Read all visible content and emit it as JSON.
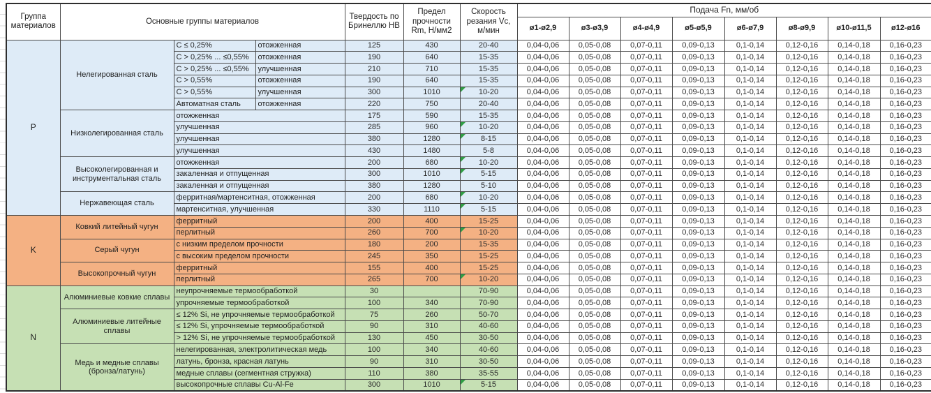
{
  "header": {
    "col_group": "Группа материалов",
    "col_materials": "Основные группы материалов",
    "col_hb": "Твердость по Бринеллю HB",
    "col_rm": "Предел прочности Rm, Н/мм2",
    "col_vc": "Скорость резания Vc, м/мин",
    "feed_title": "Подача Fn, мм/об",
    "feed_cols": [
      "ø1-ø2,9",
      "ø3-ø3,9",
      "ø4-ø4,9",
      "ø5-ø5,9",
      "ø6-ø7,9",
      "ø8-ø9,9",
      "ø10-ø11,5",
      "ø12-ø16"
    ]
  },
  "feed_values_all_rows": [
    "0,04-0,06",
    "0,05-0,08",
    "0,07-0,11",
    "0,09-0,13",
    "0,1-0,14",
    "0,12-0,16",
    "0,14-0,18",
    "0,16-0,23"
  ],
  "colors": {
    "group_p": "#DEEBF7",
    "group_k": "#F4B183",
    "group_n": "#C6E0B4",
    "comment_marker": "#2f9e44",
    "grid_line": "#4a4a4a"
  },
  "groups": [
    {
      "code": "P",
      "color": "#DEEBF7",
      "subgroups": [
        {
          "name": "Нелегированная сталь",
          "rows": [
            {
              "c1": "C ≤ 0,25%",
              "c2": "отожженная",
              "hb": "125",
              "rm": "430",
              "vc": "20-40",
              "marker": false
            },
            {
              "c1": "C > 0,25% ... ≤0,55%",
              "c2": "отожженная",
              "hb": "190",
              "rm": "640",
              "vc": "15-35",
              "marker": false
            },
            {
              "c1": "C > 0,25% ... ≤0,55%",
              "c2": "улучшенная",
              "hb": "210",
              "rm": "710",
              "vc": "15-35",
              "marker": false
            },
            {
              "c1": "C > 0,55%",
              "c2": "отожженная",
              "hb": "190",
              "rm": "640",
              "vc": "15-35",
              "marker": false
            },
            {
              "c1": "C > 0,55%",
              "c2": "улучшенная",
              "hb": "300",
              "rm": "1010",
              "vc": "10-20",
              "marker": true
            },
            {
              "c1": "Автоматная сталь",
              "c2": "отожженная",
              "hb": "220",
              "rm": "750",
              "vc": "20-40",
              "marker": false
            }
          ]
        },
        {
          "name": "Низколегированная сталь",
          "rows": [
            {
              "desc": "отожженная",
              "hb": "175",
              "rm": "590",
              "vc": "15-35",
              "marker": false
            },
            {
              "desc": "улучшенная",
              "hb": "285",
              "rm": "960",
              "vc": "10-20",
              "marker": true
            },
            {
              "desc": "улучшенная",
              "hb": "380",
              "rm": "1280",
              "vc": "8-15",
              "marker": true
            },
            {
              "desc": "улучшенная",
              "hb": "430",
              "rm": "1480",
              "vc": "5-8",
              "marker": false
            }
          ]
        },
        {
          "name": "Высоколегированная и инструментальная сталь",
          "rows": [
            {
              "desc": "отожженная",
              "hb": "200",
              "rm": "680",
              "vc": "10-20",
              "marker": true
            },
            {
              "desc": "закаленная и отпущенная",
              "hb": "300",
              "rm": "1010",
              "vc": "5-15",
              "marker": true
            },
            {
              "desc": "закаленная и отпущенная",
              "hb": "380",
              "rm": "1280",
              "vc": "5-10",
              "marker": false
            }
          ]
        },
        {
          "name": "Нержавеющая сталь",
          "rows": [
            {
              "desc": "ферритная/мартенситная, отожженная",
              "hb": "200",
              "rm": "680",
              "vc": "10-20",
              "marker": true
            },
            {
              "desc": "мартенситная, улучшенная",
              "hb": "330",
              "rm": "1110",
              "vc": "5-15",
              "marker": true
            }
          ]
        }
      ]
    },
    {
      "code": "K",
      "color": "#F4B183",
      "subgroups": [
        {
          "name": "Ковкий литейный чугун",
          "rows": [
            {
              "desc": "ферритный",
              "hb": "200",
              "rm": "400",
              "vc": "15-25",
              "marker": false
            },
            {
              "desc": "перлитный",
              "hb": "260",
              "rm": "700",
              "vc": "10-20",
              "marker": true
            }
          ]
        },
        {
          "name": "Серый чугун",
          "rows": [
            {
              "desc": "с низким пределом прочности",
              "hb": "180",
              "rm": "200",
              "vc": "15-35",
              "marker": false
            },
            {
              "desc": "с высоким пределом прочности",
              "hb": "245",
              "rm": "350",
              "vc": "15-25",
              "marker": false
            }
          ]
        },
        {
          "name": "Высокопрочный чугун",
          "rows": [
            {
              "desc": "ферритный",
              "hb": "155",
              "rm": "400",
              "vc": "15-25",
              "marker": false
            },
            {
              "desc": "перлитный",
              "hb": "265",
              "rm": "700",
              "vc": "10-20",
              "marker": true
            }
          ]
        }
      ]
    },
    {
      "code": "N",
      "color": "#C6E0B4",
      "subgroups": [
        {
          "name": "Алюминиевые ковкие сплавы",
          "rows": [
            {
              "desc": "неупрочняемые термообработкой",
              "hb": "30",
              "rm": "",
              "vc": "70-90",
              "marker": false
            },
            {
              "desc": "упрочняемые термообработкой",
              "hb": "100",
              "rm": "340",
              "vc": "70-90",
              "marker": false
            }
          ]
        },
        {
          "name": "Алюминиевые литейные сплавы",
          "rows": [
            {
              "desc": "≤ 12% Si, не упрочняемые термообработкой",
              "hb": "75",
              "rm": "260",
              "vc": "50-70",
              "marker": false
            },
            {
              "desc": "≤ 12% Si, упрочняемые термообработкой",
              "hb": "90",
              "rm": "310",
              "vc": "40-60",
              "marker": false
            },
            {
              "desc": "> 12% Si, не упрочняемые термообработкой",
              "hb": "130",
              "rm": "450",
              "vc": "30-50",
              "marker": false
            }
          ]
        },
        {
          "name": "Медь и медные сплавы (бронза/латунь)",
          "rows": [
            {
              "desc": "нелегированная, электролитическая медь",
              "hb": "100",
              "rm": "340",
              "vc": "40-60",
              "marker": false
            },
            {
              "desc": "латунь, бронза, красная латунь",
              "hb": "90",
              "rm": "310",
              "vc": "30-50",
              "marker": false
            },
            {
              "desc": "медные сплавы (сегментная стружка)",
              "hb": "110",
              "rm": "380",
              "vc": "35-55",
              "marker": false
            },
            {
              "desc": "высокопрочные сплавы Cu-Al-Fe",
              "hb": "300",
              "rm": "1010",
              "vc": "5-15",
              "marker": true
            }
          ]
        }
      ]
    }
  ]
}
